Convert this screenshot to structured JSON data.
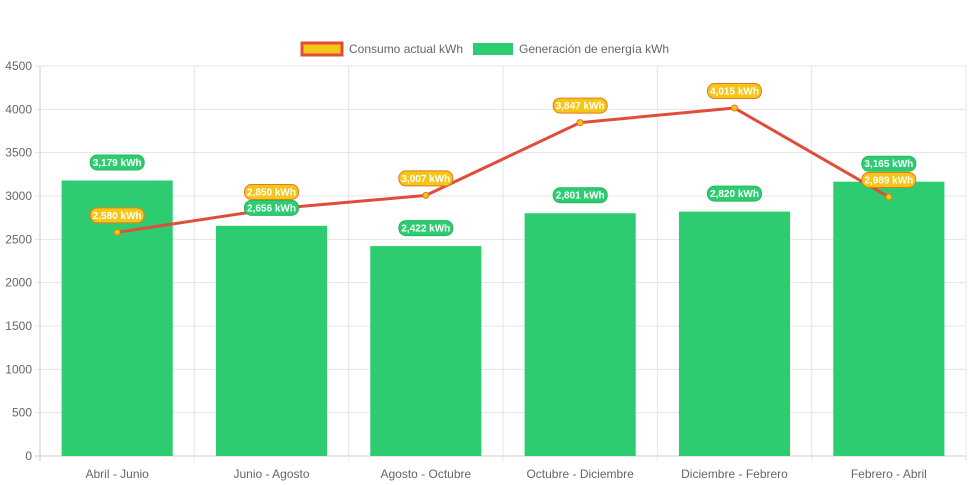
{
  "chart_data": {
    "type": "bar",
    "categories": [
      "Abril - Junio",
      "Junio - Agosto",
      "Agosto - Octubre",
      "Octubre - Diciembre",
      "Diciembre - Febrero",
      "Febrero - Abril"
    ],
    "series": [
      {
        "name": "Consumo actual kWh",
        "type": "line",
        "values": [
          2580,
          2850,
          3007,
          3847,
          4015,
          2989
        ],
        "labels": [
          "2,580 kWh",
          "2,850 kWh",
          "3,007 kWh",
          "3,847 kWh",
          "4,015 kWh",
          "2,989 kWh"
        ],
        "color": "#e04e39",
        "label_fill": "#f5c518",
        "label_border": "#e07b20"
      },
      {
        "name": "Generación de energía kWh",
        "type": "bar",
        "values": [
          3179,
          2656,
          2422,
          2801,
          2820,
          3165
        ],
        "labels": [
          "3,179 kWh",
          "2,656 kWh",
          "2,422 kWh",
          "2,801 kWh",
          "2,820 kWh",
          "3,165 kWh"
        ],
        "color": "#2ecc71"
      }
    ],
    "yticks": [
      "0",
      "500",
      "1000",
      "1500",
      "2000",
      "2500",
      "3000",
      "3500",
      "4000",
      "4500"
    ],
    "ylim": [
      0,
      4500
    ],
    "grid": true,
    "legend": "top-center"
  }
}
